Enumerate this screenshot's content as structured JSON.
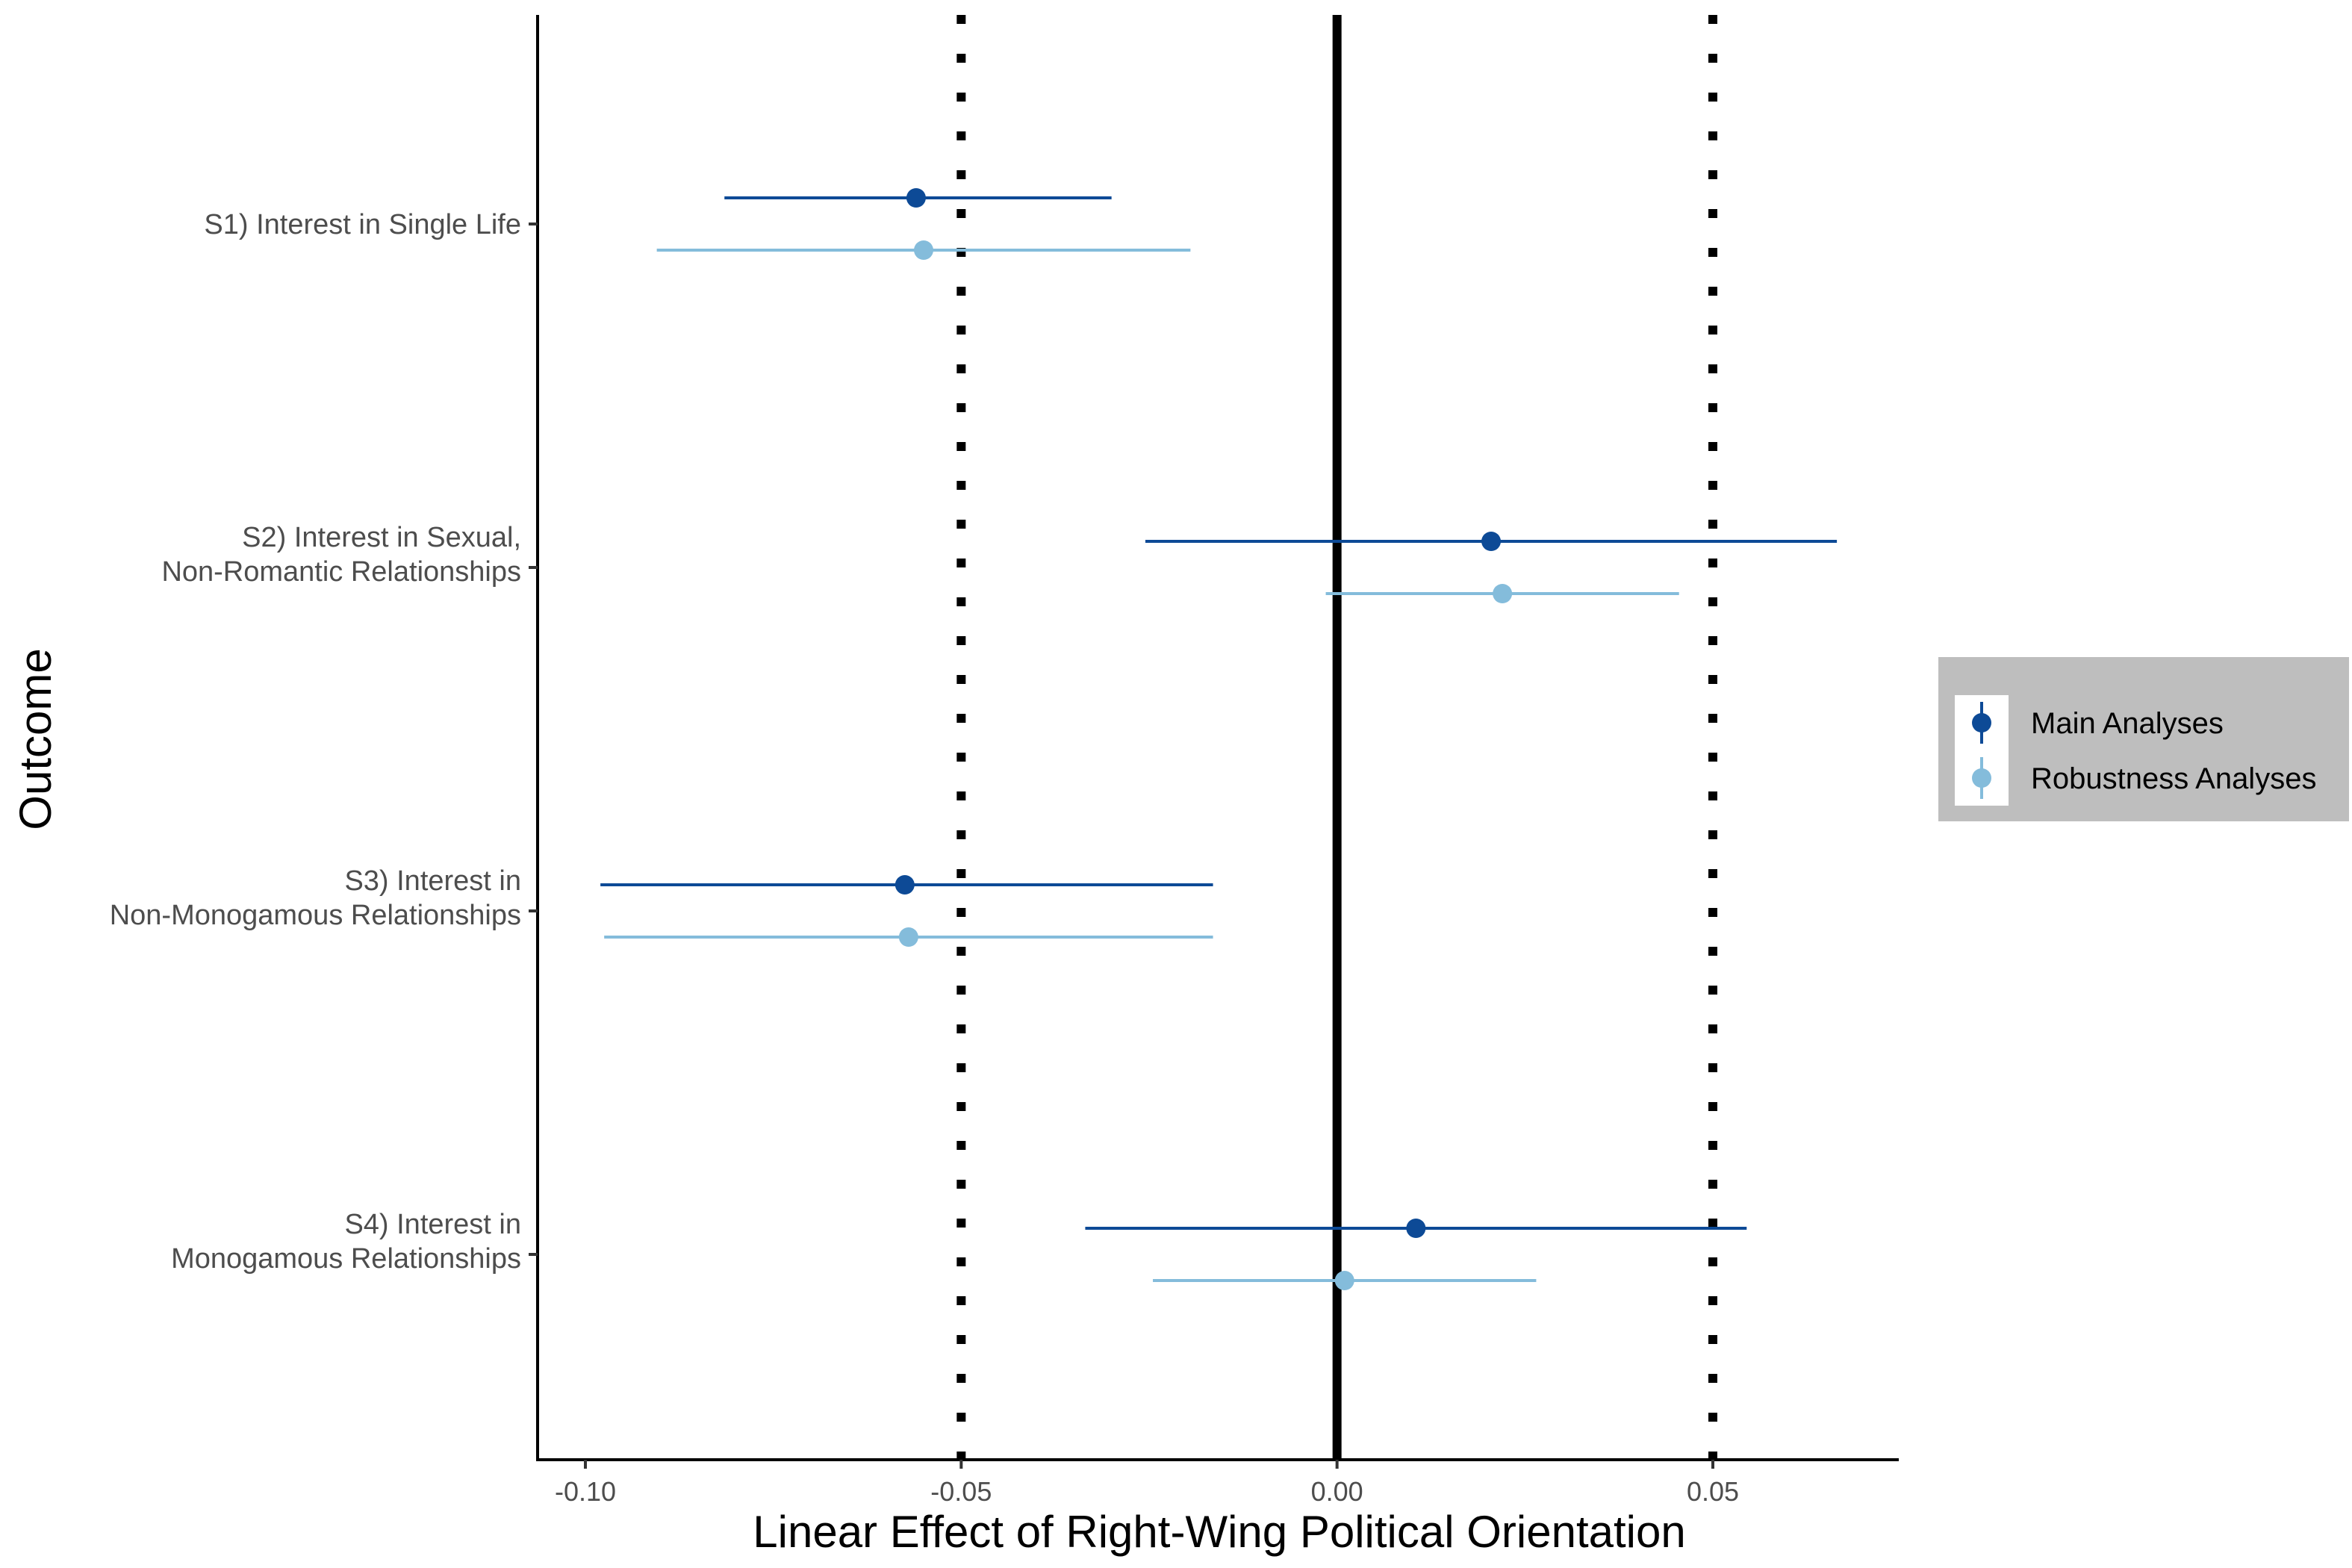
{
  "chart_data": {
    "type": "scatter",
    "subtype": "forest-plot",
    "title": "",
    "xlabel": "Linear Effect of Right-Wing Political Orientation",
    "ylabel": "Outcome",
    "xlim": [
      -0.106,
      0.075
    ],
    "x_ticks": [
      "-0.10",
      "-0.05",
      "0.00",
      "0.05"
    ],
    "x_tick_values": [
      -0.1,
      -0.05,
      0,
      0.05
    ],
    "reference_lines": [
      {
        "x": 0,
        "style": "solid"
      },
      {
        "x": -0.05,
        "style": "dotted"
      },
      {
        "x": 0.05,
        "style": "dotted"
      }
    ],
    "categories": [
      [
        "S1) Interest in Single Life"
      ],
      [
        "S2) Interest in Sexual,",
        "Non-Romantic Relationships"
      ],
      [
        "S3) Interest in",
        "Non-Monogamous Relationships"
      ],
      [
        "S4) Interest in",
        "Monogamous Relationships"
      ]
    ],
    "series": [
      {
        "name": "Main Analyses",
        "color": "#0d4a96",
        "estimates": [
          -0.056,
          0.0205,
          -0.0575,
          0.0105
        ],
        "lower": [
          -0.0815,
          -0.0255,
          -0.098,
          -0.0335
        ],
        "upper": [
          -0.03,
          0.0665,
          -0.0165,
          0.0545
        ]
      },
      {
        "name": "Robustness Analyses",
        "color": "#84bcdb",
        "estimates": [
          -0.055,
          0.022,
          -0.057,
          0.001
        ],
        "lower": [
          -0.0905,
          -0.0015,
          -0.0975,
          -0.0245
        ],
        "upper": [
          -0.0195,
          0.0455,
          -0.0165,
          0.0265
        ]
      }
    ],
    "legend_position": "right",
    "grid": false
  }
}
